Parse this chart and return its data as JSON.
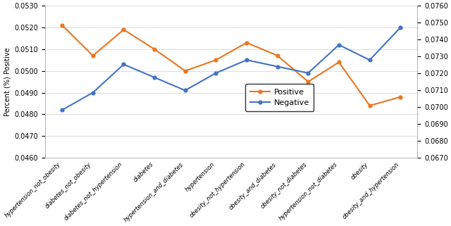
{
  "categories": [
    "hypertension_not_obesity",
    "diabetes_not_obesity",
    "diabetes_not_hypertension",
    "diabetes",
    "hypertension_and_diabetes",
    "hypertension",
    "obesity_not_hypertension",
    "obesity_and_diabetes",
    "obesity_not_diabetes",
    "hypertension_not_diabetes",
    "obesity",
    "obesity_and_hypertension"
  ],
  "positive": [
    0.0521,
    0.0507,
    0.0519,
    0.051,
    0.05,
    0.0505,
    0.0513,
    0.0507,
    0.0495,
    0.0504,
    0.0484,
    0.0488
  ],
  "negative": [
    0.0482,
    0.049,
    0.0503,
    0.0497,
    0.0491,
    0.0499,
    0.0505,
    0.0502,
    0.0499,
    0.0512,
    0.0505,
    0.052
  ],
  "positive_color": "#E87722",
  "negative_color": "#4472C4",
  "ylabel_left": "Percent (%) Positive",
  "ylim_left": [
    0.046,
    0.053
  ],
  "ylim_right": [
    0.067,
    0.076
  ],
  "yticks_left": [
    0.046,
    0.047,
    0.048,
    0.049,
    0.05,
    0.051,
    0.052,
    0.053
  ],
  "yticks_right": [
    0.067,
    0.068,
    0.069,
    0.07,
    0.071,
    0.072,
    0.073,
    0.074,
    0.075,
    0.076
  ],
  "legend_labels": [
    "Positive",
    "Negative"
  ],
  "marker": "o",
  "linewidth": 1.5
}
